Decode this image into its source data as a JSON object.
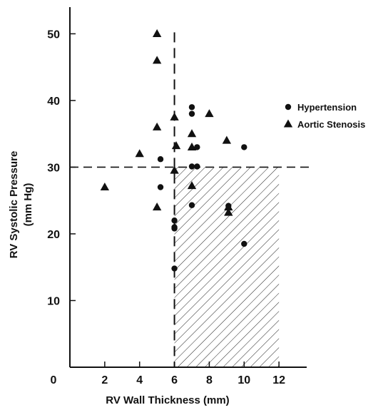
{
  "chart_data": {
    "type": "scatter",
    "xlabel": "RV Wall Thickness (mm)",
    "ylabel": [
      "RV Systolic Pressure",
      "(mm Hg)"
    ],
    "origin_label": "0",
    "xlim": [
      0,
      14
    ],
    "ylim": [
      0,
      54
    ],
    "x_ticks": [
      2,
      4,
      6,
      8,
      10,
      12
    ],
    "y_ticks": [
      10,
      20,
      30,
      40,
      50
    ],
    "grid": false,
    "legend_position": "right",
    "reference_lines": {
      "x": 6,
      "y": 30
    },
    "shaded_region": {
      "x": [
        6,
        12
      ],
      "y": [
        0,
        30
      ]
    },
    "series": [
      {
        "name": "Hypertension",
        "marker": "circle",
        "color": "#111111",
        "points": [
          [
            5.2,
            31.2
          ],
          [
            5.2,
            27
          ],
          [
            6,
            22
          ],
          [
            6,
            21
          ],
          [
            6,
            20.8
          ],
          [
            6,
            14.8
          ],
          [
            7,
            39
          ],
          [
            7,
            38
          ],
          [
            7,
            30.1
          ],
          [
            7,
            24.3
          ],
          [
            7.3,
            33
          ],
          [
            7.3,
            30.1
          ],
          [
            9.1,
            24.2
          ],
          [
            10,
            33
          ],
          [
            10,
            18.5
          ]
        ]
      },
      {
        "name": "Aortic Stenosis",
        "marker": "triangle",
        "color": "#111111",
        "points": [
          [
            5,
            50
          ],
          [
            5,
            46
          ],
          [
            5,
            36
          ],
          [
            5,
            24
          ],
          [
            2,
            27
          ],
          [
            4,
            32
          ],
          [
            6,
            37.5
          ],
          [
            6.1,
            33.2
          ],
          [
            6,
            29.5
          ],
          [
            7,
            35
          ],
          [
            7,
            33
          ],
          [
            7,
            27.2
          ],
          [
            8,
            38
          ],
          [
            9,
            34
          ],
          [
            9.1,
            24
          ],
          [
            9.1,
            23.2
          ]
        ]
      }
    ]
  }
}
